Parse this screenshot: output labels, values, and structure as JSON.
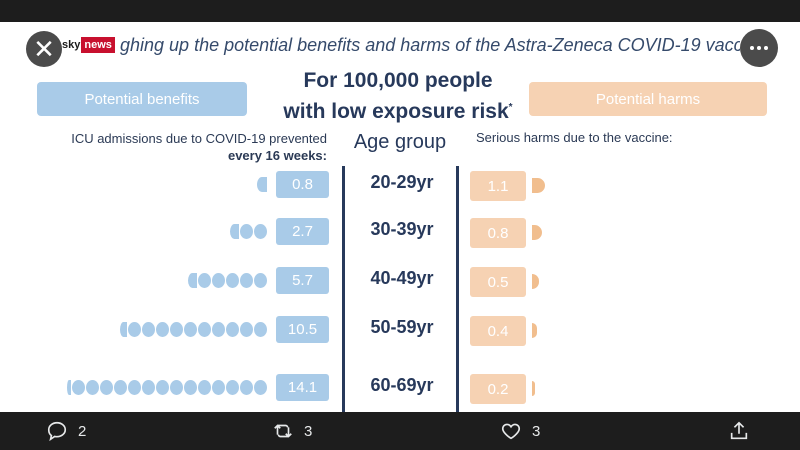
{
  "image": {
    "source_logo": {
      "sky": "sky",
      "news": "news"
    },
    "headline": "ghing up the potential benefits and harms of the Astra-Zeneca COVID-19 vaccin",
    "benefits_label": "Potential benefits",
    "harms_label": "Potential harms",
    "title_line1": "For 100,000 people",
    "title_line2": "with low exposure risk",
    "title_marker": "*",
    "benefits_subtitle_line1": "ICU admissions due to COVID-19 prevented",
    "benefits_subtitle_line2": "every 16 weeks:",
    "age_header": "Age group",
    "harms_subtitle": "Serious harms due to the vaccine:",
    "rows": [
      {
        "age": "20-29yr",
        "benefit": "0.8",
        "harm": "1.1"
      },
      {
        "age": "30-39yr",
        "benefit": "2.7",
        "harm": "0.8"
      },
      {
        "age": "40-49yr",
        "benefit": "5.7",
        "harm": "0.5"
      },
      {
        "age": "50-59yr",
        "benefit": "10.5",
        "harm": "0.4"
      },
      {
        "age": "60-69yr",
        "benefit": "14.1",
        "harm": "0.2"
      }
    ],
    "colors": {
      "benefit": "#a9cbe8",
      "harm": "#f6d2b3",
      "text": "#27395b"
    }
  },
  "actions": {
    "replies": "2",
    "retweets": "3",
    "likes": "3"
  },
  "icons": {
    "close": "close-icon",
    "more": "more-icon",
    "reply": "reply-icon",
    "retweet": "retweet-icon",
    "like": "like-icon",
    "share": "share-icon"
  }
}
